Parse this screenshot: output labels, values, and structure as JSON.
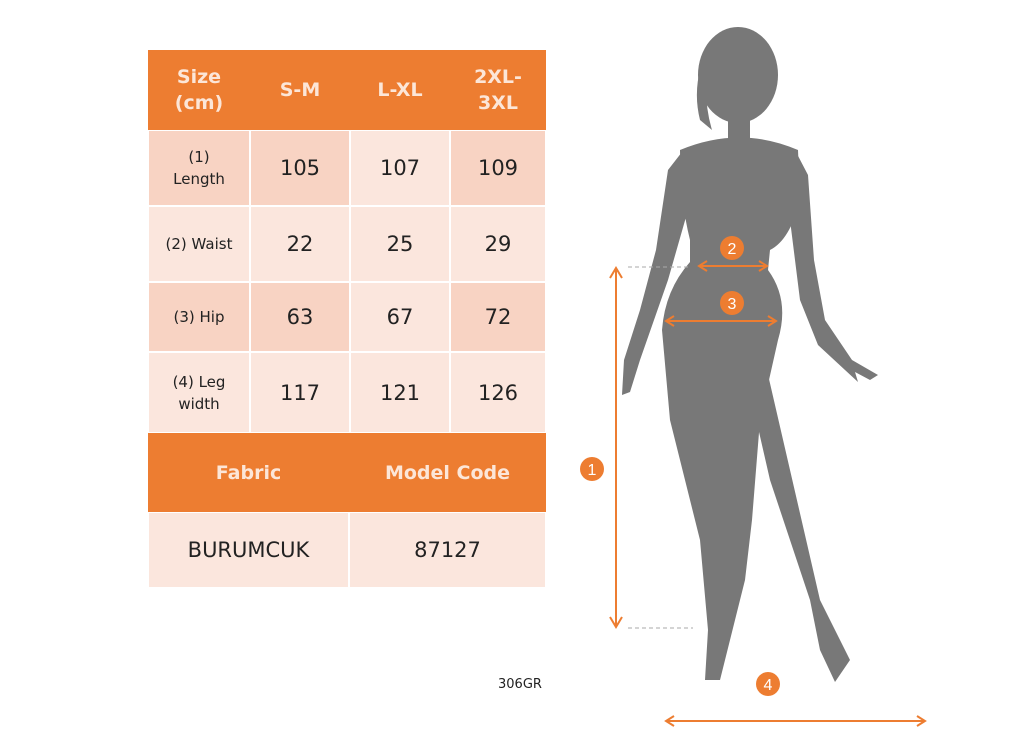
{
  "table": {
    "header": [
      "Size\n(cm)",
      "S-M",
      "L-XL",
      "2XL-\n3XL"
    ],
    "rows": [
      {
        "label": "(1)\nLength",
        "values": [
          "105",
          "107",
          "109"
        ]
      },
      {
        "label": "(2) Waist",
        "values": [
          "22",
          "25",
          "29"
        ]
      },
      {
        "label": "(3) Hip",
        "values": [
          "63",
          "67",
          "72"
        ]
      },
      {
        "label": "(4) Leg\nwidth",
        "values": [
          "117",
          "121",
          "126"
        ]
      }
    ],
    "fabric_header": "Fabric",
    "model_code_header": "Model Code",
    "fabric_value": "BURUMCUK",
    "model_code_value": "87127"
  },
  "product_code": "306GR",
  "markers": [
    "1",
    "2",
    "3",
    "4"
  ],
  "colors": {
    "accent": "#ed7d31",
    "silhouette": "#787878"
  }
}
